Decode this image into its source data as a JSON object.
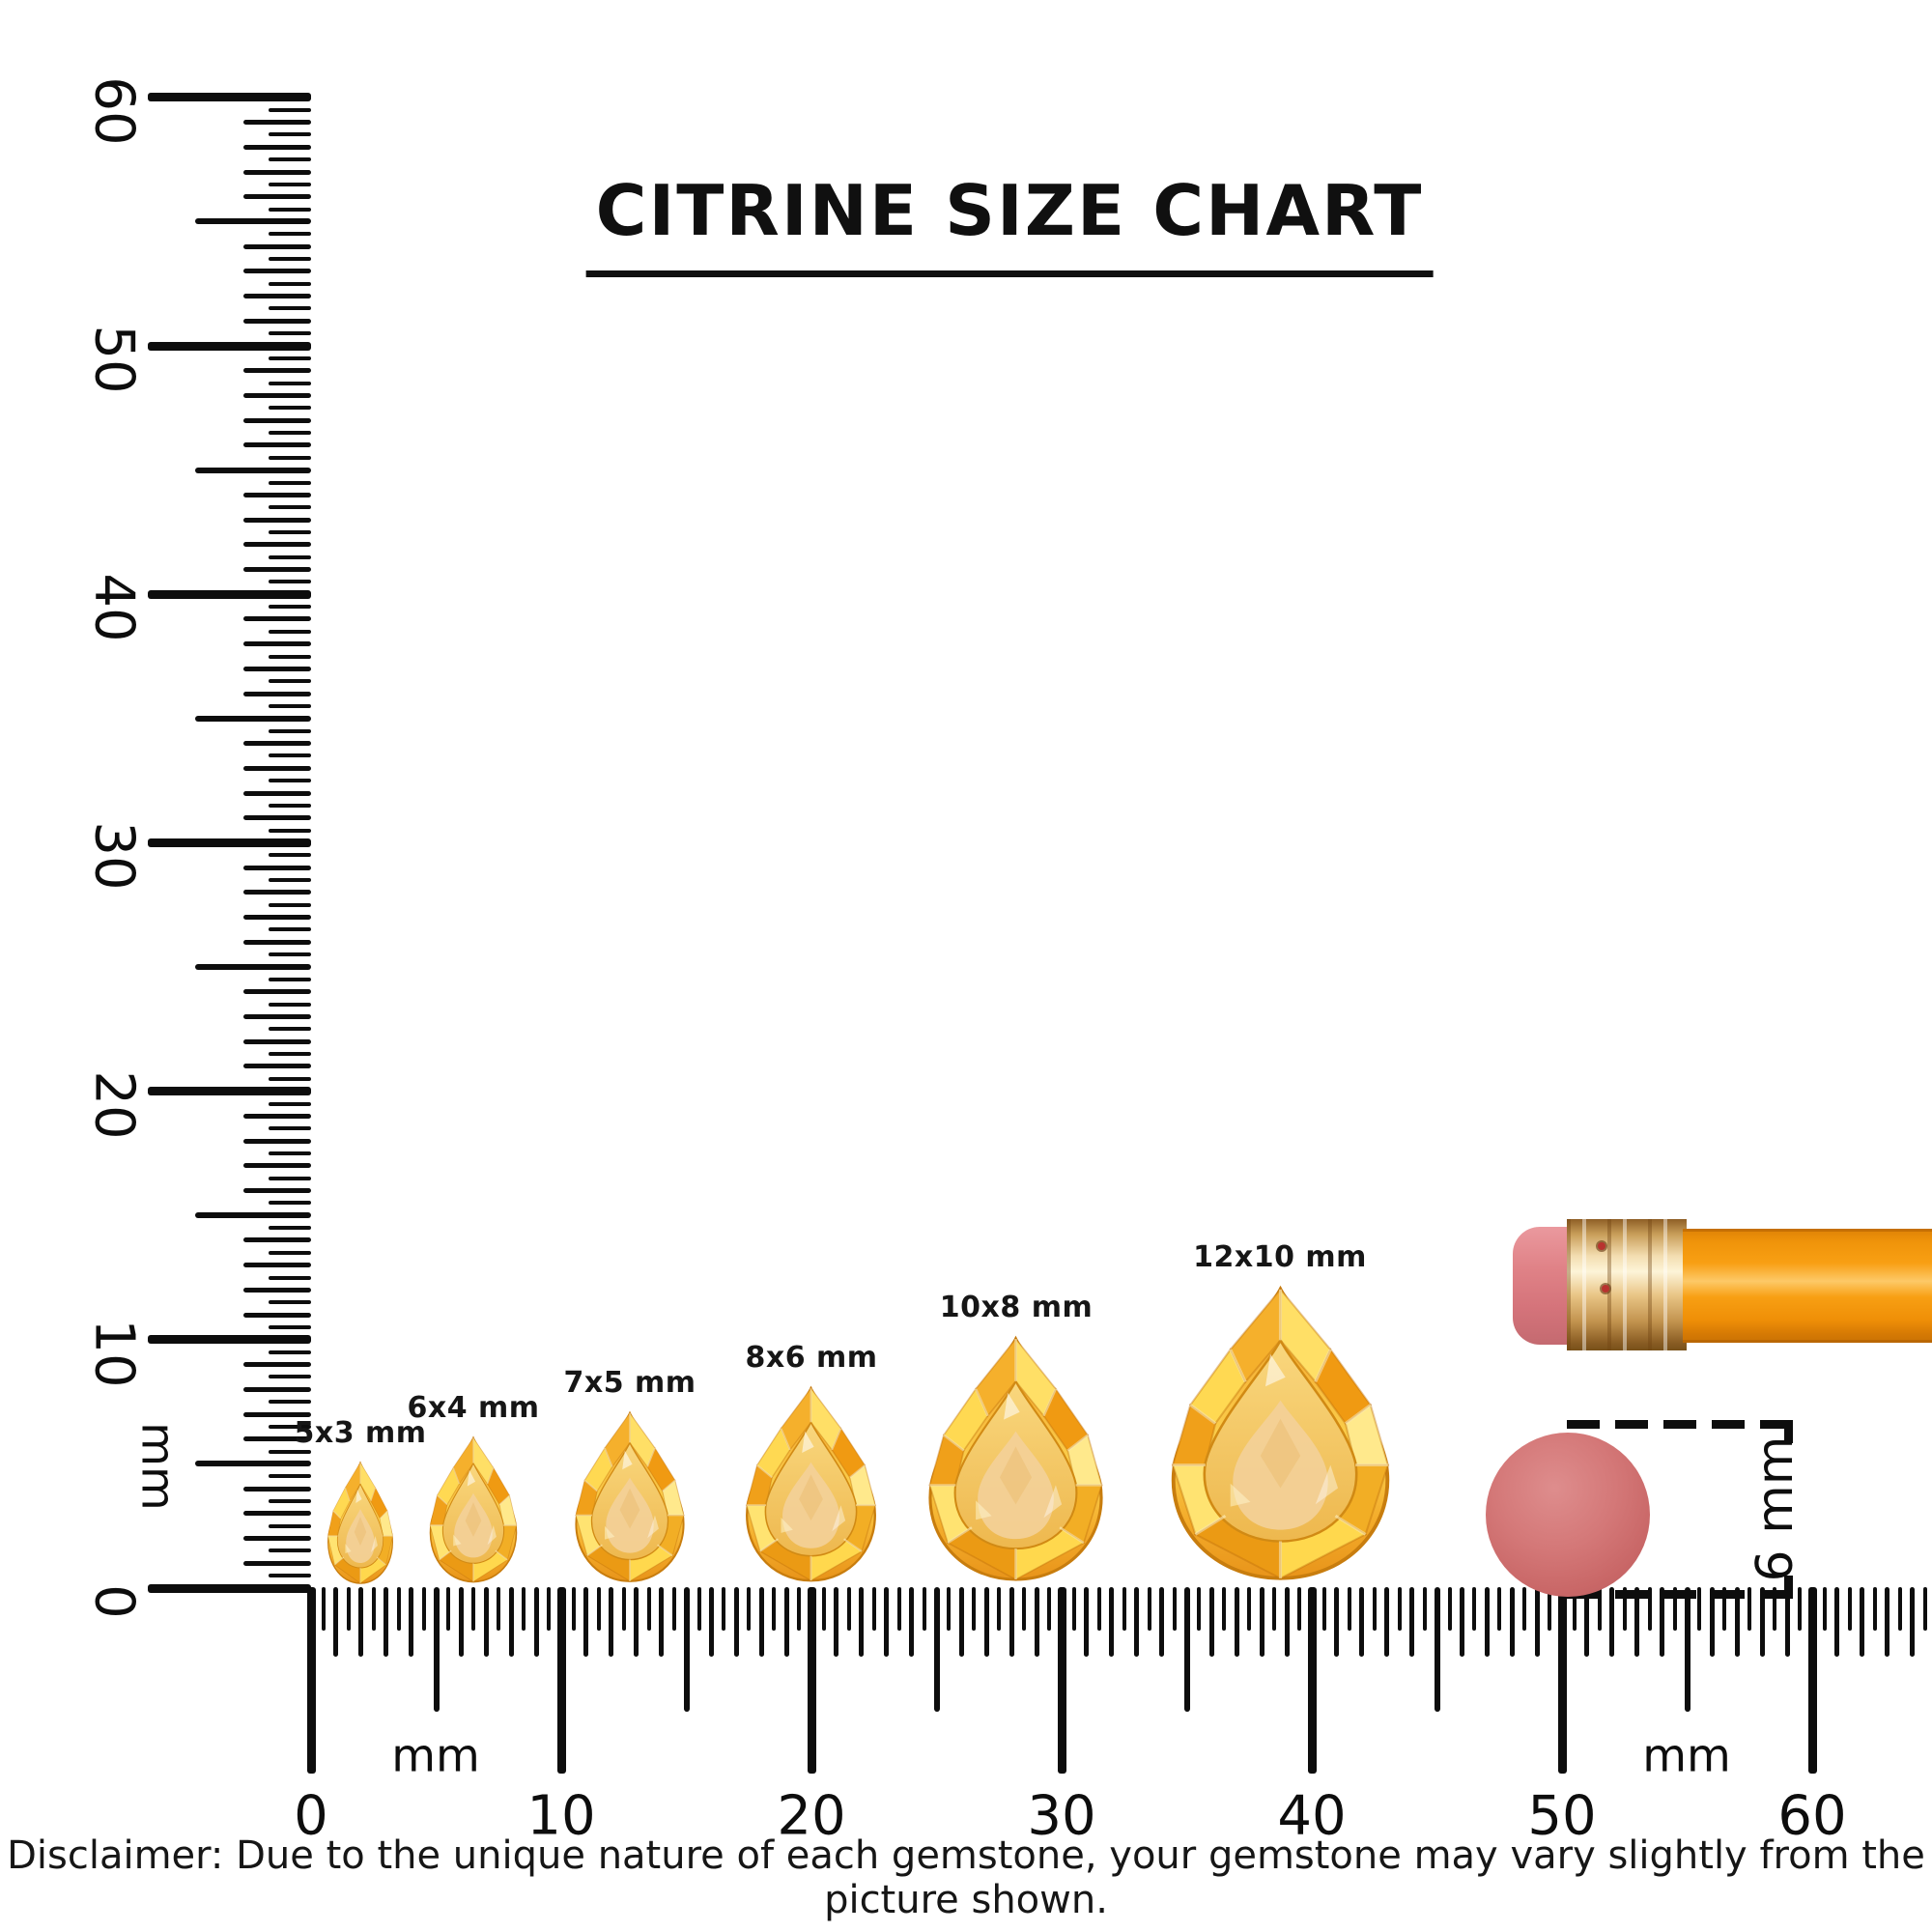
{
  "title": "CITRINE SIZE CHART",
  "vertical_ruler": {
    "unit": "mm",
    "tick_labels": [
      "0",
      "10",
      "20",
      "30",
      "40",
      "50",
      "60"
    ]
  },
  "horizontal_ruler": {
    "unit_left": "mm",
    "unit_right": "mm",
    "tick_labels": [
      "0",
      "10",
      "20",
      "30",
      "40",
      "50",
      "60"
    ]
  },
  "gems": [
    {
      "label": "5x3 mm",
      "length_mm": 5,
      "width_mm": 3
    },
    {
      "label": "6x4 mm",
      "length_mm": 6,
      "width_mm": 4
    },
    {
      "label": "7x5 mm",
      "length_mm": 7,
      "width_mm": 5
    },
    {
      "label": "8x6 mm",
      "length_mm": 8,
      "width_mm": 6
    },
    {
      "label": "10x8 mm",
      "length_mm": 10,
      "width_mm": 8
    },
    {
      "label": "12x10 mm",
      "length_mm": 12,
      "width_mm": 10
    }
  ],
  "reference": {
    "pencil_name": "pencil with eraser",
    "round_eraser_name": "round pencil eraser",
    "eraser_size_label": "6 mm"
  },
  "disclaimer": "Disclaimer: Due to the unique nature of each gemstone, your gemstone may vary slightly from the picture shown.",
  "colors": {
    "ink": "#0d0d0d",
    "citrine_light": "#ffe371",
    "citrine_main": "#f5b02c",
    "citrine_deep": "#e8941a",
    "citrine_table": "#f3d098",
    "pencil_body": "#f89f13",
    "pencil_ferrule": "#e9c586",
    "pencil_eraser_pink": "#e08287",
    "round_eraser_pink": "#c96767"
  }
}
